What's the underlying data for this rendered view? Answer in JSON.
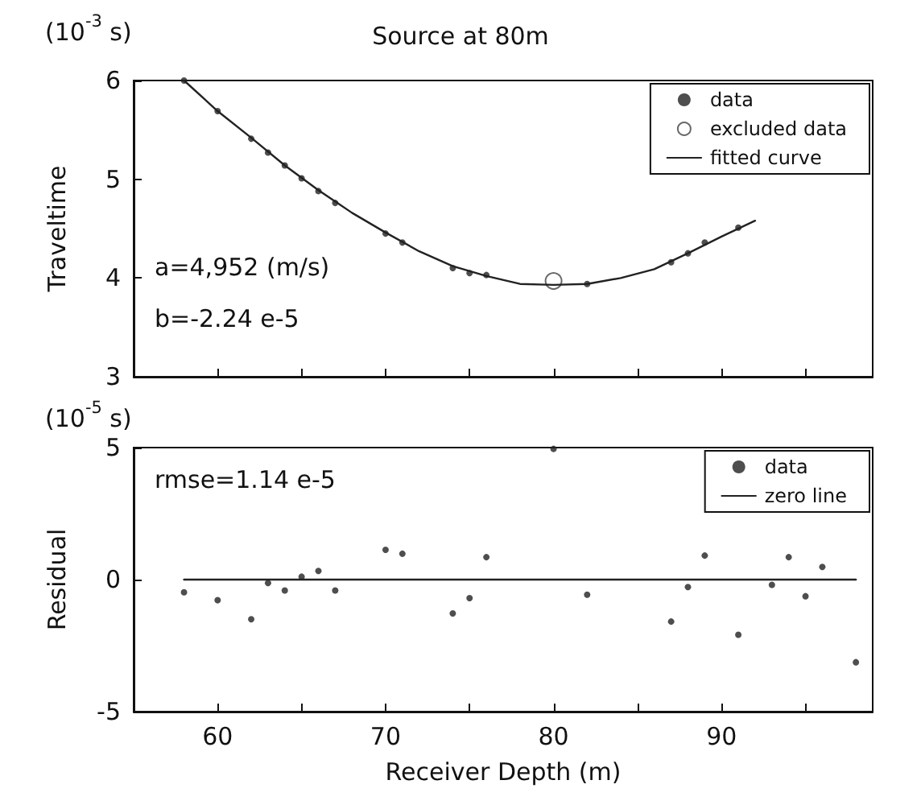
{
  "chart_data": [
    {
      "type": "scatter",
      "title": "Source at 80m",
      "ylabel": "Traveltime",
      "annotations": [
        "(10$^{-3}$ s)",
        "a=4,952 (m/s)",
        "b=-2.24 e-5"
      ],
      "xlim": [
        55,
        99
      ],
      "xticks": [
        55,
        60,
        {
          "value": 65,
          "label": null
        },
        70,
        {
          "value": 75,
          "label": null
        },
        80,
        {
          "value": 85,
          "label": null
        },
        90,
        {
          "value": 95,
          "label": null
        }
      ],
      "ylim": [
        3,
        6
      ],
      "yticks": [
        3,
        4,
        5,
        6
      ],
      "tick_labels": "y",
      "legend": "top right",
      "grid": false,
      "series": [
        {
          "name": "data",
          "marker": "circle",
          "color": "#222222",
          "x": [
            58,
            60,
            62,
            63,
            64,
            65,
            66,
            67,
            70,
            71,
            74,
            75,
            76,
            82,
            87,
            88,
            89,
            91
          ],
          "values": [
            6.0,
            5.69,
            5.41,
            5.27,
            5.14,
            5.01,
            4.88,
            4.76,
            4.45,
            4.36,
            4.1,
            4.05,
            4.03,
            3.94,
            4.16,
            4.25,
            4.36,
            4.51
          ]
        },
        {
          "name": "excluded data",
          "marker": "circle",
          "color": "#ffffff",
          "x": [
            80
          ],
          "values": [
            3.97
          ]
        },
        {
          "name": "fitted curve",
          "type": "line",
          "marker": "none",
          "line_style": "solid",
          "color": "#222222",
          "x": [
            58,
            60,
            62,
            64,
            66,
            68,
            70,
            72,
            74,
            76,
            78,
            80,
            82,
            84,
            86,
            88,
            90,
            92
          ],
          "values": [
            6.0,
            5.69,
            5.42,
            5.14,
            4.89,
            4.66,
            4.46,
            4.27,
            4.12,
            4.02,
            3.94,
            3.93,
            3.94,
            4.0,
            4.09,
            4.25,
            4.42,
            4.58
          ]
        }
      ]
    },
    {
      "type": "scatter",
      "xlabel": "Receiver Depth (m)",
      "ylabel": "Residual",
      "annotations": [
        "(10$^{-5}$ s)",
        "rmse=1.14 e-5"
      ],
      "xlim": [
        55,
        99
      ],
      "xticks": [
        {
          "value": 55,
          "label": null
        },
        60,
        {
          "value": 65,
          "label": null
        },
        70,
        {
          "value": 75,
          "label": null
        },
        80,
        {
          "value": 85,
          "label": null
        },
        90,
        {
          "value": 95,
          "label": null
        }
      ],
      "ylim": [
        -5,
        5
      ],
      "yticks": [
        -5,
        0,
        5
      ],
      "legend": "top right",
      "grid": false,
      "series": [
        {
          "name": "data",
          "marker": "circle",
          "color": "#222222",
          "x": [
            58,
            60,
            62,
            63,
            64,
            65,
            66,
            67,
            70,
            71,
            74,
            75,
            76,
            80,
            82,
            87,
            88,
            89,
            91,
            93,
            94,
            95,
            96,
            98
          ],
          "values": [
            -0.48,
            -0.78,
            -1.5,
            -0.13,
            -0.41,
            0.11,
            0.33,
            -0.41,
            1.13,
            0.98,
            -1.28,
            -0.7,
            0.85,
            4.95,
            -0.57,
            -1.59,
            -0.28,
            0.91,
            -2.09,
            -0.2,
            0.85,
            -0.63,
            0.48,
            -3.13
          ]
        },
        {
          "name": "zero line",
          "type": "line",
          "marker": "none",
          "line_style": "solid",
          "color": "#222222",
          "x": [
            58,
            98
          ],
          "values": [
            0,
            0
          ]
        }
      ]
    }
  ]
}
